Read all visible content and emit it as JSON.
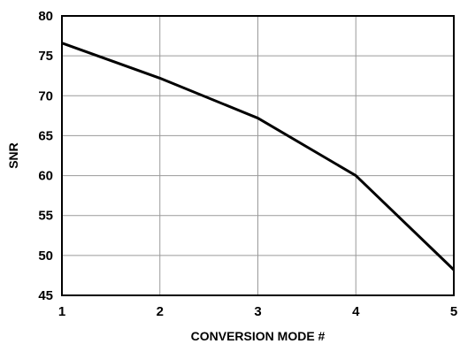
{
  "chart_data": {
    "type": "line",
    "title": "",
    "xlabel": "CONVERSION MODE #",
    "ylabel": "SNR",
    "x": [
      1,
      2,
      3,
      4,
      5
    ],
    "xlim": [
      1,
      5
    ],
    "ylim": [
      45,
      80
    ],
    "xticks": [
      1,
      2,
      3,
      4,
      5
    ],
    "yticks": [
      45,
      50,
      55,
      60,
      65,
      70,
      75,
      80
    ],
    "grid": true,
    "legend": "none",
    "series": [
      {
        "values": [
          76.6,
          72.2,
          67.2,
          60.0,
          48.2
        ],
        "color": "#000000"
      }
    ]
  }
}
